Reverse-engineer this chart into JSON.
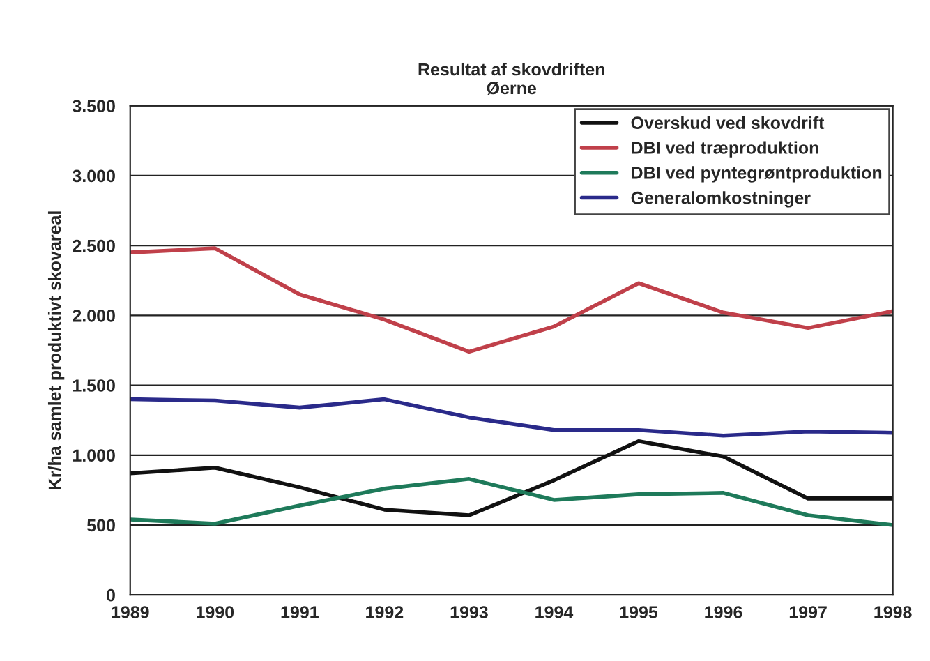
{
  "chart_data": {
    "type": "line",
    "title": "Resultat af skovdriften\nØerne",
    "ylabel": "Kr/ha samlet produktivt skovareal",
    "categories": [
      "1989",
      "1990",
      "1991",
      "1992",
      "1993",
      "1994",
      "1995",
      "1996",
      "1997",
      "1998"
    ],
    "series": [
      {
        "name": "Overskud ved skovdrift",
        "color": "#111111",
        "values": [
          870,
          910,
          770,
          610,
          570,
          820,
          1100,
          990,
          690,
          690
        ]
      },
      {
        "name": "DBI ved træproduktion",
        "color": "#c0404a",
        "values": [
          2450,
          2480,
          2150,
          1970,
          1740,
          1920,
          2230,
          2020,
          1910,
          2030
        ]
      },
      {
        "name": "DBI ved pyntegrøntproduktion",
        "color": "#1e7a5a",
        "values": [
          540,
          510,
          640,
          760,
          830,
          680,
          720,
          730,
          570,
          500
        ]
      },
      {
        "name": "Generalomkostninger",
        "color": "#2a2a8a",
        "values": [
          1400,
          1390,
          1340,
          1400,
          1270,
          1180,
          1180,
          1140,
          1170,
          1160
        ]
      }
    ],
    "ylim": [
      0,
      3500
    ],
    "yticks": [
      0,
      500,
      {
        "value": 1000,
        "label": "1.000"
      },
      {
        "value": 1500,
        "label": "1.500"
      },
      {
        "value": 2000,
        "label": "2.000"
      },
      {
        "value": 2500,
        "label": "2.500"
      },
      {
        "value": 3000,
        "label": "3.000"
      },
      {
        "value": 3500,
        "label": "3.500"
      }
    ],
    "grid": "y",
    "legend": "top right",
    "marker": "none",
    "line_style": "solid"
  }
}
